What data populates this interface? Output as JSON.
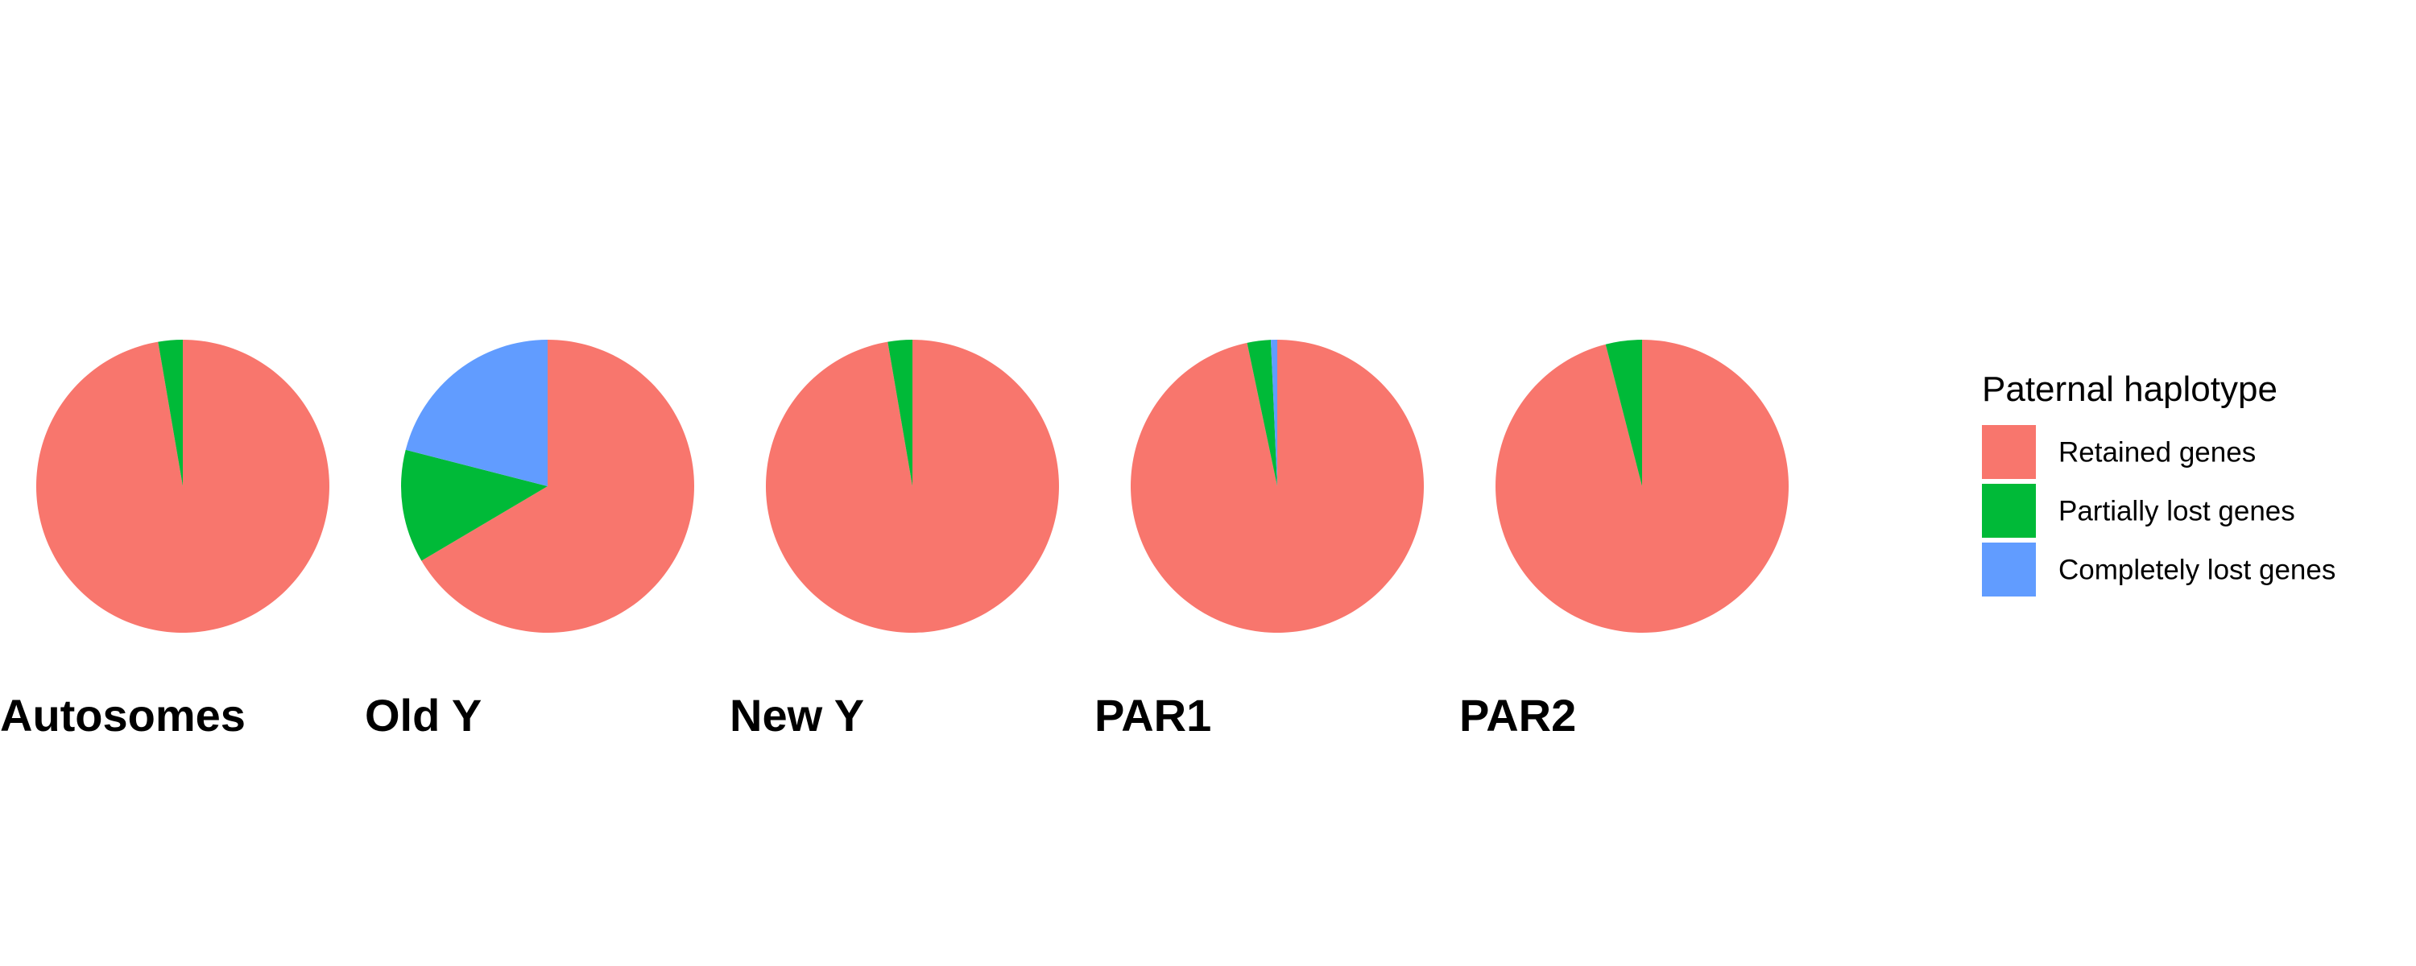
{
  "chart_data": {
    "type": "pie",
    "legend": {
      "title": "Paternal haplotype",
      "placement": "right",
      "entries": [
        {
          "name": "Retained genes",
          "color": "#F8766D"
        },
        {
          "name": "Partially lost genes",
          "color": "#00BA38"
        },
        {
          "name": "Completely lost genes",
          "color": "#619CFF"
        }
      ]
    },
    "categories": [
      "Retained genes",
      "Partially lost genes",
      "Completely lost genes"
    ],
    "pies": [
      {
        "label": "Autosomes",
        "values": [
          97.3,
          2.7,
          0.0
        ]
      },
      {
        "label": "Old Y",
        "values": [
          66.5,
          12.5,
          21.0
        ]
      },
      {
        "label": "New Y",
        "values": [
          97.3,
          2.7,
          0.0
        ]
      },
      {
        "label": "PAR1",
        "values": [
          96.7,
          2.6,
          0.7
        ]
      },
      {
        "label": "PAR2",
        "values": [
          96.0,
          4.0,
          0.0
        ]
      }
    ]
  }
}
